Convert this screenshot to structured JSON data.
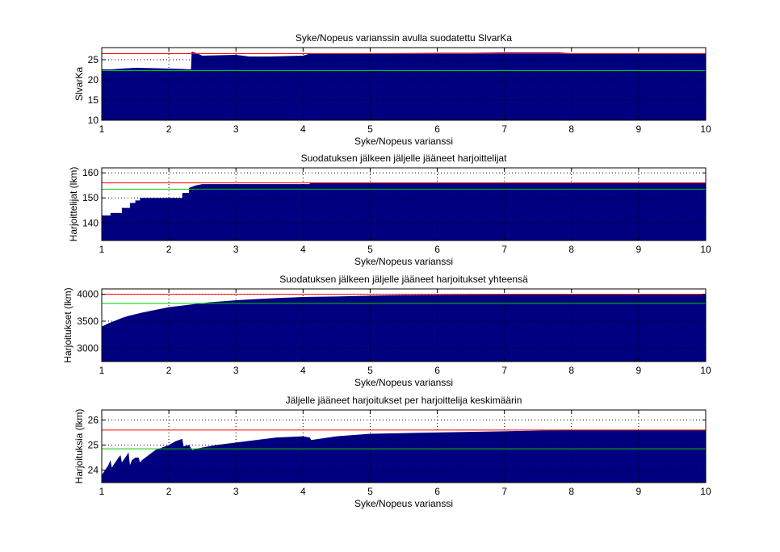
{
  "figure": {
    "background": "#ffffff",
    "fill_color": "#000080",
    "upper_line_color": "#ff0000",
    "lower_line_color": "#00cc00"
  },
  "chart_data": [
    {
      "type": "area",
      "title": "Syke/Nopeus varianssin avulla suodatettu SlvarKa",
      "xlabel": "Syke/Nopeus varianssi",
      "ylabel": "SlvarKa",
      "xlim": [
        1,
        10
      ],
      "ylim": [
        10,
        28
      ],
      "xticks": [
        "1",
        "2",
        "3",
        "4",
        "5",
        "6",
        "7",
        "8",
        "9",
        "10"
      ],
      "yticks": [
        "10",
        "15",
        "20",
        "25"
      ],
      "ytick_values": [
        10,
        15,
        20,
        25
      ],
      "grid": true,
      "reference_lines": {
        "upper": 26.5,
        "lower": 22.3
      },
      "x": [
        1,
        1.15,
        1.3,
        1.5,
        1.8,
        2.0,
        2.2,
        2.33,
        2.34,
        2.4,
        2.5,
        3.0,
        3.2,
        3.5,
        4.0,
        4.1,
        4.5,
        5.0,
        6.0,
        6.5,
        7.0,
        7.5,
        7.8,
        8.0,
        8.5,
        9.0,
        9.5,
        10
      ],
      "y": [
        22.6,
        22.6,
        22.8,
        23.0,
        22.9,
        22.8,
        22.7,
        22.6,
        27.0,
        26.7,
        26.0,
        26.2,
        25.8,
        25.8,
        26.0,
        26.5,
        26.5,
        26.6,
        26.7,
        26.7,
        26.8,
        26.8,
        26.8,
        26.6,
        26.6,
        26.5,
        26.4,
        26.4
      ]
    },
    {
      "type": "area",
      "title": "Suodatuksen jälkeen jäljelle jääneet harjoittelijat",
      "xlabel": "Syke/Nopeus varianssi",
      "ylabel": "Harjoittelijat (lkm)",
      "xlim": [
        1,
        10
      ],
      "ylim": [
        133,
        162
      ],
      "xticks": [
        "1",
        "2",
        "3",
        "4",
        "5",
        "6",
        "7",
        "8",
        "9",
        "10"
      ],
      "yticks": [
        "140",
        "150",
        "160"
      ],
      "ytick_values": [
        140,
        150,
        160
      ],
      "grid": true,
      "reference_lines": {
        "upper": 156,
        "lower": 153.5
      },
      "x": [
        1,
        1.13,
        1.13,
        1.3,
        1.3,
        1.42,
        1.42,
        1.5,
        1.5,
        1.57,
        1.57,
        1.65,
        1.65,
        2.2,
        2.2,
        2.3,
        2.3,
        2.4,
        2.5,
        3.0,
        4.1,
        4.1,
        10
      ],
      "y": [
        143,
        143,
        144,
        144,
        146,
        146,
        148,
        148,
        149,
        149,
        150,
        150,
        150,
        150,
        152,
        152,
        154,
        155,
        155.5,
        155.5,
        155.5,
        156,
        156
      ]
    },
    {
      "type": "area",
      "title": "Suodatuksen jälkeen jäljelle jääneet harjoitukset yhteensä",
      "xlabel": "Syke/Nopeus varianssi",
      "ylabel": "Harjoitukset (lkm)",
      "xlim": [
        1,
        10
      ],
      "ylim": [
        2750,
        4100
      ],
      "xticks": [
        "1",
        "2",
        "3",
        "4",
        "5",
        "6",
        "7",
        "8",
        "9",
        "10"
      ],
      "yticks": [
        "3000",
        "3500",
        "4000"
      ],
      "ytick_values": [
        3000,
        3500,
        4000
      ],
      "grid": true,
      "reference_lines": {
        "upper": 4000,
        "lower": 3830
      },
      "x": [
        1,
        1.1,
        1.2,
        1.3,
        1.4,
        1.5,
        1.6,
        1.8,
        2.0,
        2.2,
        2.4,
        2.6,
        2.8,
        3.0,
        3.3,
        3.6,
        4.0,
        4.5,
        5.0,
        5.5,
        6.0,
        7.0,
        8.0,
        9.0,
        10
      ],
      "y": [
        3400,
        3460,
        3510,
        3560,
        3600,
        3630,
        3660,
        3710,
        3760,
        3790,
        3820,
        3850,
        3870,
        3890,
        3910,
        3930,
        3950,
        3960,
        3975,
        3985,
        3990,
        3995,
        4000,
        4000,
        4000
      ]
    },
    {
      "type": "area",
      "title": "Jäljelle jääneet harjoitukset per harjoittelija keskimäärin",
      "xlabel": "Syke/Nopeus varianssi",
      "ylabel": "Harjoituksia (lkm)",
      "xlim": [
        1,
        10
      ],
      "ylim": [
        23.5,
        26.4
      ],
      "xticks": [
        "1",
        "2",
        "3",
        "4",
        "5",
        "6",
        "7",
        "8",
        "9",
        "10"
      ],
      "yticks": [
        "24",
        "25",
        "26"
      ],
      "ytick_values": [
        24,
        25,
        26
      ],
      "grid": true,
      "reference_lines": {
        "upper": 25.6,
        "lower": 24.85
      },
      "x": [
        1,
        1.05,
        1.1,
        1.13,
        1.15,
        1.2,
        1.25,
        1.28,
        1.3,
        1.35,
        1.4,
        1.42,
        1.45,
        1.5,
        1.55,
        1.57,
        1.6,
        1.65,
        1.7,
        1.8,
        1.9,
        2.0,
        2.1,
        2.2,
        2.22,
        2.3,
        2.35,
        2.4,
        2.5,
        2.7,
        3.0,
        3.3,
        3.6,
        4.0,
        4.1,
        4.12,
        4.5,
        5.0,
        6.0,
        7.0,
        8.0,
        9.0,
        10
      ],
      "y": [
        23.8,
        24.0,
        24.2,
        24.4,
        24.1,
        24.3,
        24.5,
        24.6,
        24.3,
        24.5,
        24.7,
        24.2,
        24.4,
        24.5,
        24.5,
        24.3,
        24.4,
        24.5,
        24.6,
        24.8,
        24.9,
        25.0,
        25.15,
        25.25,
        24.95,
        25.0,
        24.8,
        24.85,
        24.9,
        25.0,
        25.1,
        25.2,
        25.3,
        25.35,
        25.3,
        25.2,
        25.35,
        25.45,
        25.5,
        25.55,
        25.6,
        25.6,
        25.6
      ]
    }
  ]
}
